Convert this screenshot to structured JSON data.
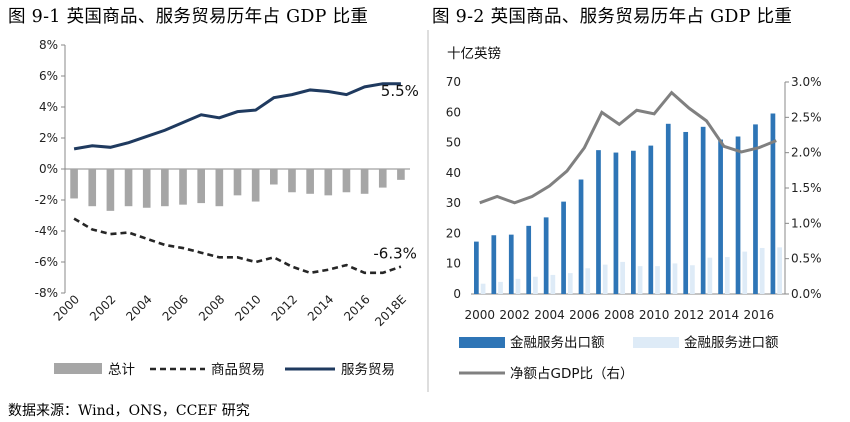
{
  "fig1": {
    "title": "图 9-1  英国商品、服务贸易历年占 GDP 比重",
    "end_labels": {
      "services": "5.5%",
      "goods": "-6.3%"
    },
    "legend": [
      "总计",
      "商品贸易",
      "服务贸易"
    ],
    "colors": {
      "total": "#a6a6a6",
      "goods": "#262626",
      "services": "#1f3a5f"
    }
  },
  "fig2": {
    "title": "图 9-2  英国商品、服务贸易历年占 GDP 比重",
    "unit": "十亿英镑",
    "legend": [
      "金融服务出口额",
      "金融服务进口额",
      "净额占GDP比（右）"
    ],
    "colors": {
      "exports": "#2e75b6",
      "imports": "#deebf7",
      "ratio": "#808080"
    }
  },
  "source": "数据来源：Wind，ONS，CCEF 研究",
  "chart_data": [
    {
      "type": "bar",
      "title": "图 9-1  英国商品、服务贸易历年占 GDP 比重",
      "x": [
        "2000",
        "2001",
        "2002",
        "2003",
        "2004",
        "2005",
        "2006",
        "2007",
        "2008",
        "2009",
        "2010",
        "2011",
        "2012",
        "2013",
        "2014",
        "2015",
        "2016",
        "2017",
        "2018E"
      ],
      "x_tick_labels": [
        "2000",
        "2002",
        "2004",
        "2006",
        "2008",
        "2010",
        "2012",
        "2014",
        "2016",
        "2018E"
      ],
      "ylim": [
        -8,
        8
      ],
      "y_ticks": [
        "8%",
        "6%",
        "4%",
        "2%",
        "0%",
        "-2%",
        "-4%",
        "-6%",
        "-8%"
      ],
      "series": [
        {
          "name": "总计",
          "type": "bar",
          "values": [
            -1.9,
            -2.4,
            -2.7,
            -2.4,
            -2.5,
            -2.4,
            -2.3,
            -2.2,
            -2.4,
            -1.7,
            -2.1,
            -1.0,
            -1.5,
            -1.6,
            -1.7,
            -1.5,
            -1.6,
            -1.2,
            -0.7
          ]
        },
        {
          "name": "商品贸易",
          "type": "line",
          "dash": true,
          "values": [
            -3.2,
            -3.9,
            -4.2,
            -4.1,
            -4.5,
            -4.9,
            -5.1,
            -5.4,
            -5.7,
            -5.7,
            -6.0,
            -5.7,
            -6.3,
            -6.7,
            -6.5,
            -6.2,
            -6.7,
            -6.7,
            -6.3
          ]
        },
        {
          "name": "服务贸易",
          "type": "line",
          "values": [
            1.3,
            1.5,
            1.4,
            1.7,
            2.1,
            2.5,
            3.0,
            3.5,
            3.3,
            3.7,
            3.8,
            4.6,
            4.8,
            5.1,
            5.0,
            4.8,
            5.3,
            5.5,
            5.5
          ]
        }
      ],
      "grid": false
    },
    {
      "type": "bar",
      "title": "图 9-2  英国商品、服务贸易历年占 GDP 比重",
      "unit_left": "十亿英镑",
      "x": [
        "2000",
        "2001",
        "2002",
        "2003",
        "2004",
        "2005",
        "2006",
        "2007",
        "2008",
        "2009",
        "2010",
        "2011",
        "2012",
        "2013",
        "2014",
        "2015",
        "2016",
        "2017"
      ],
      "x_tick_labels": [
        "2000",
        "2002",
        "2004",
        "2006",
        "2008",
        "2010",
        "2012",
        "2014",
        "2016"
      ],
      "ylim_left": [
        0,
        70
      ],
      "y_ticks_left": [
        "0",
        "10",
        "20",
        "30",
        "40",
        "50",
        "60",
        "70"
      ],
      "ylim_right": [
        0,
        3
      ],
      "y_ticks_right": [
        "0.0%",
        "0.5%",
        "1.0%",
        "1.5%",
        "2.0%",
        "2.5%",
        "3.0%"
      ],
      "series": [
        {
          "name": "金融服务出口额",
          "type": "bar",
          "axis": "left",
          "values": [
            17.3,
            19.4,
            19.6,
            22.5,
            25.3,
            30.5,
            37.8,
            47.5,
            46.7,
            47.3,
            49.0,
            56.2,
            53.5,
            55.2,
            51.0,
            52.0,
            56.0,
            59.6
          ]
        },
        {
          "name": "金融服务进口额",
          "type": "bar",
          "axis": "left",
          "values": [
            3.4,
            4.0,
            5.0,
            5.7,
            6.3,
            6.9,
            8.5,
            9.7,
            10.6,
            9.2,
            9.2,
            10.1,
            9.5,
            12.0,
            12.2,
            14.0,
            15.2,
            15.4
          ]
        },
        {
          "name": "净额占GDP比（右）",
          "type": "line",
          "axis": "right",
          "values": [
            1.29,
            1.38,
            1.29,
            1.38,
            1.53,
            1.74,
            2.07,
            2.57,
            2.4,
            2.6,
            2.55,
            2.85,
            2.63,
            2.45,
            2.09,
            2.01,
            2.07,
            2.17
          ]
        }
      ],
      "grid": false
    }
  ]
}
